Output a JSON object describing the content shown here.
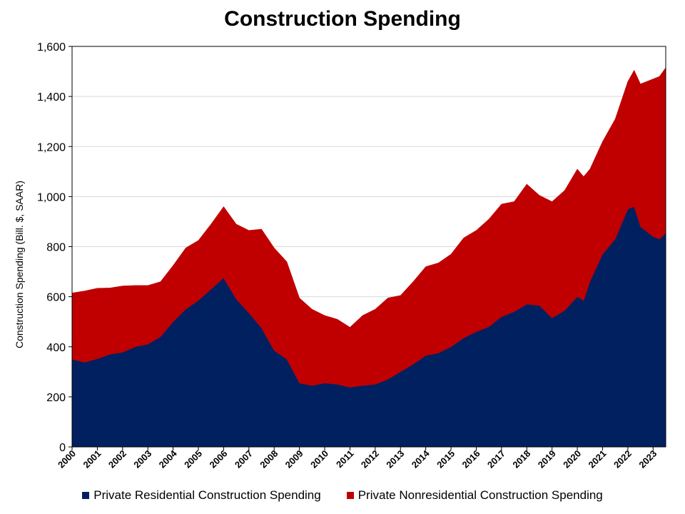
{
  "chart_data": {
    "type": "area",
    "stacked": true,
    "title": "Construction Spending",
    "ylabel": "Construction Spending (Bill. $, SAAR)",
    "xlabel": "",
    "ylim": [
      0,
      1600
    ],
    "yticks": [
      0,
      200,
      400,
      600,
      800,
      1000,
      1200,
      1400,
      1600
    ],
    "ytick_labels": [
      "0",
      "200",
      "400",
      "600",
      "800",
      "1,000",
      "1,200",
      "1,400",
      "1,600"
    ],
    "xlim": [
      2000,
      2023.5
    ],
    "xticks": [
      "2000",
      "2001",
      "2002",
      "2003",
      "2004",
      "2005",
      "2006",
      "2007",
      "2008",
      "2009",
      "2010",
      "2011",
      "2012",
      "2013",
      "2014",
      "2015",
      "2016",
      "2017",
      "2018",
      "2019",
      "2020",
      "2021",
      "2022",
      "2023"
    ],
    "grid": "horizontal",
    "legend_position": "bottom",
    "x": [
      2000.0,
      2000.5,
      2001.0,
      2001.5,
      2002.0,
      2002.5,
      2003.0,
      2003.5,
      2004.0,
      2004.5,
      2005.0,
      2005.5,
      2006.0,
      2006.5,
      2007.0,
      2007.5,
      2008.0,
      2008.5,
      2009.0,
      2009.5,
      2010.0,
      2010.5,
      2011.0,
      2011.5,
      2012.0,
      2012.5,
      2013.0,
      2013.5,
      2014.0,
      2014.5,
      2015.0,
      2015.5,
      2016.0,
      2016.5,
      2017.0,
      2017.5,
      2018.0,
      2018.5,
      2019.0,
      2019.5,
      2020.0,
      2020.25,
      2020.5,
      2021.0,
      2021.5,
      2022.0,
      2022.25,
      2022.5,
      2023.0,
      2023.25,
      2023.5
    ],
    "series": [
      {
        "name": "Private Residential Construction Spending",
        "color": "#002060",
        "values": [
          350,
          338,
          352,
          370,
          378,
          400,
          410,
          440,
          500,
          550,
          585,
          630,
          675,
          590,
          535,
          475,
          385,
          350,
          255,
          245,
          255,
          250,
          238,
          245,
          250,
          270,
          300,
          330,
          365,
          375,
          400,
          435,
          460,
          480,
          520,
          540,
          570,
          565,
          515,
          545,
          600,
          585,
          660,
          770,
          830,
          950,
          960,
          880,
          840,
          830,
          855
        ]
      },
      {
        "name": "Private Nonresidential Construction Spending",
        "color": "#C00000",
        "values": [
          265,
          285,
          282,
          265,
          265,
          245,
          235,
          220,
          225,
          245,
          240,
          260,
          285,
          300,
          330,
          395,
          410,
          390,
          340,
          305,
          270,
          260,
          240,
          280,
          300,
          325,
          305,
          330,
          355,
          360,
          370,
          400,
          405,
          430,
          450,
          440,
          480,
          440,
          465,
          480,
          510,
          495,
          450,
          450,
          480,
          510,
          545,
          570,
          630,
          650,
          660
        ]
      }
    ]
  },
  "legend": {
    "items": [
      {
        "label": "Private Residential Construction Spending",
        "color": "#002060"
      },
      {
        "label": "Private Nonresidential Construction Spending",
        "color": "#C00000"
      }
    ]
  }
}
